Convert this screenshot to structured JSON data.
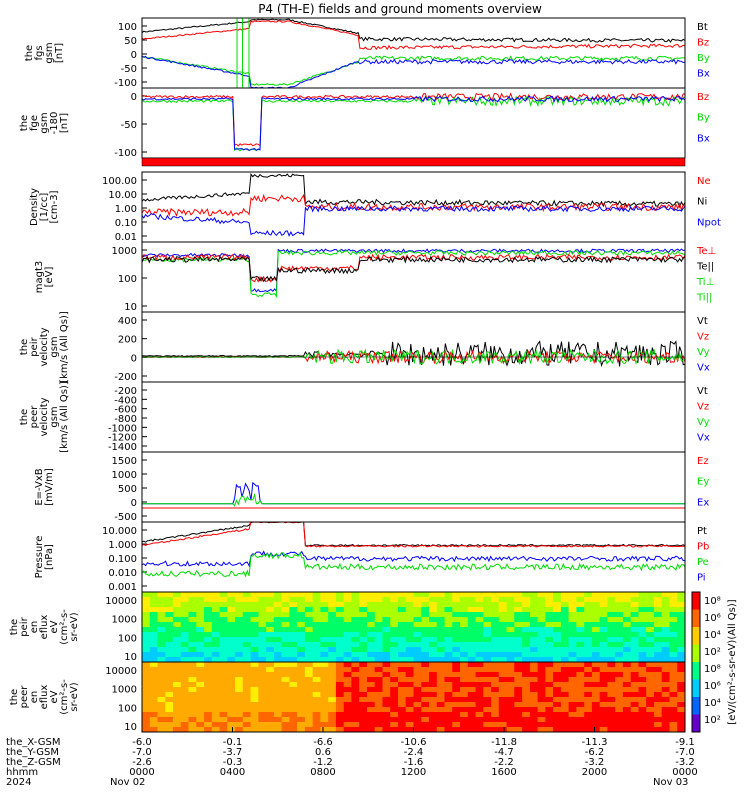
{
  "title": "P4 (TH-E) fields and ground moments overview",
  "colors": {
    "black": "#000000",
    "red": "#ff0000",
    "green": "#00dd00",
    "blue": "#0000ff"
  },
  "panels": [
    {
      "id": "fgs",
      "ylabel": [
        "the",
        "fgs",
        "gsm",
        "[nT]"
      ],
      "ticks": [
        "100",
        "50",
        "0",
        "-50",
        "-100"
      ],
      "legend": [
        [
          "Bt",
          "black"
        ],
        [
          "Bz",
          "red"
        ],
        [
          "By",
          "green"
        ],
        [
          "Bx",
          "blue"
        ]
      ]
    },
    {
      "id": "fge",
      "ylabel": [
        "the",
        "fge",
        "gsm",
        "-180",
        "[nT]"
      ],
      "ticks": [
        "0",
        "-50",
        "-100"
      ],
      "legend": [
        [
          "Bz",
          "red"
        ],
        [
          "By",
          "green"
        ],
        [
          "Bx",
          "blue"
        ]
      ]
    },
    {
      "id": "density",
      "ylabel": [
        "Density",
        "[1/cc]",
        "[cm-3]"
      ],
      "ticks": [
        "100.00",
        "10.00",
        "1.00",
        "0.10",
        "0.01"
      ],
      "legend": [
        [
          "Ne",
          "red"
        ],
        [
          "Ni",
          "black"
        ],
        [
          "Npot",
          "blue"
        ]
      ]
    },
    {
      "id": "temp",
      "ylabel": [
        "magt3",
        "[eV]"
      ],
      "ticks": [
        "1000",
        "100",
        "10"
      ],
      "legend": [
        [
          "Te⊥",
          "red"
        ],
        [
          "Te||",
          "black"
        ],
        [
          "Ti⊥",
          "green"
        ],
        [
          "Ti||",
          "green"
        ]
      ]
    },
    {
      "id": "peir_v",
      "ylabel": [
        "the",
        "peir",
        "velocity",
        "gsm",
        "[km/s (All Qs)]"
      ],
      "ticks": [
        "400",
        "200",
        "0",
        "-200"
      ],
      "legend": [
        [
          "Vt",
          "black"
        ],
        [
          "Vz",
          "red"
        ],
        [
          "Vy",
          "green"
        ],
        [
          "Vx",
          "blue"
        ]
      ]
    },
    {
      "id": "peer_v",
      "ylabel": [
        "the",
        "peer",
        "velocity",
        "gsm",
        "[km/s (All Qs)]"
      ],
      "ticks": [
        "-200",
        "-400",
        "-600",
        "-800",
        "-1000",
        "-1200",
        "-1400"
      ],
      "legend": [
        [
          "Vt",
          "black"
        ],
        [
          "Vz",
          "red"
        ],
        [
          "Vy",
          "green"
        ],
        [
          "Vx",
          "blue"
        ]
      ]
    },
    {
      "id": "efield",
      "ylabel": [
        "E=-VxB",
        "[mV/m]"
      ],
      "ticks": [
        "1500",
        "1000",
        "500",
        "0",
        "-500"
      ],
      "legend": [
        [
          "Ez",
          "red"
        ],
        [
          "Ey",
          "green"
        ],
        [
          "Ex",
          "blue"
        ]
      ]
    },
    {
      "id": "pressure",
      "ylabel": [
        "Pressure",
        "[nPa]"
      ],
      "ticks": [
        "10.000",
        "1.000",
        "0.100",
        "0.010",
        "0.001"
      ],
      "legend": [
        [
          "Pt",
          "black"
        ],
        [
          "Pb",
          "red"
        ],
        [
          "Pe",
          "green"
        ],
        [
          "Pi",
          "blue"
        ]
      ]
    },
    {
      "id": "peir_eflux",
      "ylabel": [
        "the",
        "peir",
        "en",
        "eflux",
        "eV",
        "(cm²-s-",
        "sr-eV)"
      ],
      "ticks": [
        "10000",
        "1000",
        "100",
        "10"
      ],
      "legend": []
    },
    {
      "id": "peer_eflux",
      "ylabel": [
        "the",
        "peer",
        "en",
        "eflux",
        "eV",
        "(cm²-s-",
        "sr-eV)"
      ],
      "ticks": [
        "10000",
        "1000",
        "100",
        "10"
      ],
      "legend": []
    }
  ],
  "colorbar": {
    "label": "[eV/(cm²-s-sr-eV)(All Qs)]",
    "ticks": [
      "10⁸",
      "10⁶",
      "10⁴",
      "10²",
      "10⁸",
      "10⁶",
      "10⁴",
      "10²"
    ]
  },
  "xaxis": {
    "row_labels": [
      "the_X-GSM",
      "the_Y-GSM",
      "the_Z-GSM",
      "hhmm",
      "2024"
    ],
    "columns": [
      [
        "-6.0",
        "-7.0",
        "-2.6",
        "0000",
        "Nov 02"
      ],
      [
        "-0.1",
        "-3.7",
        "-0.3",
        "0400",
        ""
      ],
      [
        "-6.6",
        "0.6",
        "-1.2",
        "0800",
        ""
      ],
      [
        "-10.6",
        "-2.4",
        "-1.6",
        "1200",
        ""
      ],
      [
        "-11.8",
        "-4.7",
        "-2.2",
        "1600",
        ""
      ],
      [
        "-11.3",
        "-6.2",
        "-3.2",
        "2000",
        ""
      ],
      [
        "-9.1",
        "-7.0",
        "-3.2",
        "0000",
        "Nov 03"
      ]
    ]
  },
  "chart_data": {
    "type": "line",
    "title": "P4 (TH-E) fields and ground moments overview",
    "x_range": [
      "2024-11-02 00:00",
      "2024-11-03 00:00"
    ],
    "x_ticks": [
      "0000",
      "0400",
      "0800",
      "1200",
      "1600",
      "2000",
      "0000"
    ],
    "series_fgs": [
      {
        "name": "Bt",
        "values": [
          40,
          80,
          100,
          100,
          40,
          30,
          35,
          38,
          40,
          42
        ]
      },
      {
        "name": "Bz",
        "values": [
          40,
          60,
          100,
          90,
          20,
          15,
          20,
          20,
          22,
          25
        ]
      },
      {
        "name": "By",
        "values": [
          -10,
          -40,
          -100,
          -50,
          -20,
          -15,
          -15,
          -10,
          -10,
          -5
        ]
      },
      {
        "name": "Bx",
        "values": [
          -10,
          -30,
          -100,
          -100,
          -20,
          -20,
          -25,
          -25,
          -25,
          -20
        ]
      }
    ]
  }
}
